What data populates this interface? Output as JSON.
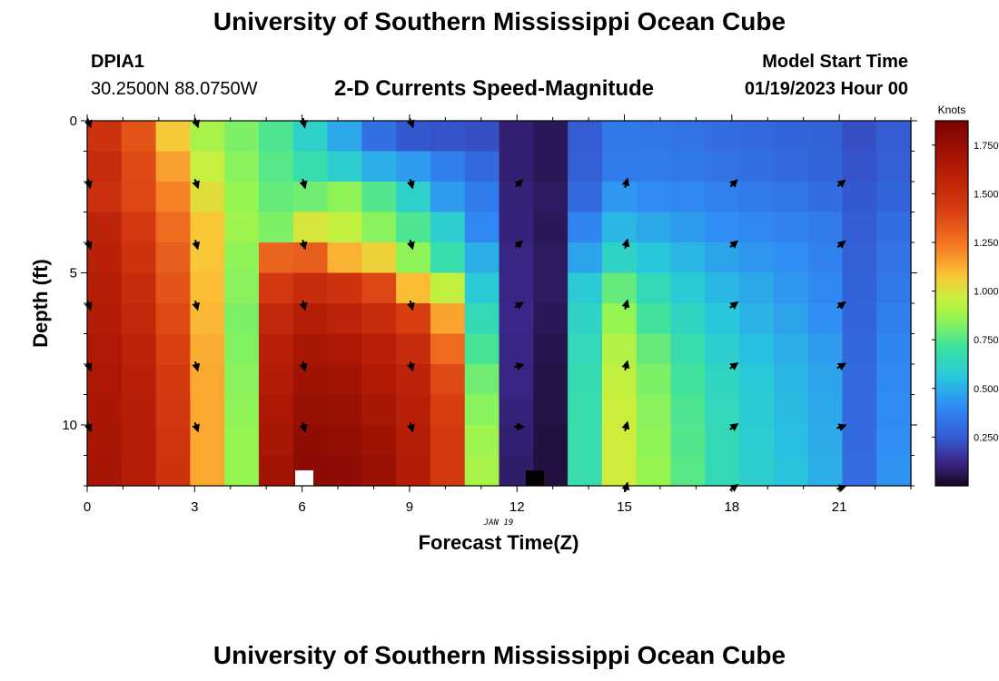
{
  "header": {
    "title": "University of Southern Mississippi Ocean Cube",
    "station": "DPIA1",
    "coordinates": "30.2500N  88.0750W",
    "subtitle": "2-D Currents Speed-Magnitude",
    "model_start_label": "Model Start Time",
    "model_start_value": "01/19/2023 Hour 00"
  },
  "footer": {
    "title": "University of Southern Mississippi Ocean Cube"
  },
  "chart_data": {
    "type": "heatmap",
    "title": "2-D Currents Speed-Magnitude",
    "xlabel": "Forecast Time(Z)",
    "ylabel": "Depth (ft)",
    "x_date_label": "JAN 19",
    "xlim": [
      0,
      23
    ],
    "ylim": [
      0,
      12
    ],
    "x_ticks": [
      0,
      3,
      6,
      9,
      12,
      15,
      18,
      21
    ],
    "y_ticks": [
      0,
      5,
      10
    ],
    "hours": [
      0,
      1,
      2,
      3,
      4,
      5,
      6,
      7,
      8,
      9,
      10,
      11,
      12,
      13,
      14,
      15,
      16,
      17,
      18,
      19,
      20,
      21,
      22,
      23
    ],
    "depths": [
      0,
      1,
      2,
      3,
      4,
      5,
      6,
      7,
      8,
      9,
      10,
      11
    ],
    "colorbar": {
      "label": "Knots",
      "min": 0,
      "max": 1.875,
      "ticks": [
        0.25,
        0.5,
        0.75,
        1.0,
        1.25,
        1.5,
        1.75
      ],
      "tick_labels": [
        "0.250",
        "0.500",
        "0.750",
        "1.000",
        "1.250",
        "1.500",
        "1.750"
      ]
    },
    "speed_knots": [
      [
        1.48,
        1.35,
        1.07,
        0.9,
        0.82,
        0.74,
        0.61,
        0.48,
        0.32,
        0.24,
        0.23,
        0.22,
        0.1,
        0.07,
        0.25,
        0.35,
        0.34,
        0.33,
        0.31,
        0.3,
        0.28,
        0.27,
        0.22,
        0.25
      ],
      [
        1.53,
        1.38,
        1.16,
        0.96,
        0.84,
        0.76,
        0.68,
        0.6,
        0.5,
        0.45,
        0.37,
        0.3,
        0.1,
        0.07,
        0.26,
        0.36,
        0.36,
        0.35,
        0.33,
        0.32,
        0.3,
        0.28,
        0.23,
        0.26
      ],
      [
        1.5,
        1.39,
        1.22,
        1.02,
        0.86,
        0.78,
        0.8,
        0.85,
        0.75,
        0.61,
        0.45,
        0.36,
        0.11,
        0.08,
        0.3,
        0.44,
        0.41,
        0.4,
        0.38,
        0.36,
        0.34,
        0.31,
        0.24,
        0.28
      ],
      [
        1.57,
        1.45,
        1.28,
        1.08,
        0.88,
        0.82,
        1.0,
        0.95,
        0.84,
        0.74,
        0.6,
        0.4,
        0.11,
        0.07,
        0.39,
        0.52,
        0.48,
        0.45,
        0.42,
        0.4,
        0.38,
        0.36,
        0.25,
        0.31
      ],
      [
        1.6,
        1.48,
        1.32,
        1.08,
        0.85,
        1.3,
        1.32,
        1.12,
        1.05,
        0.85,
        0.68,
        0.5,
        0.12,
        0.08,
        0.47,
        0.62,
        0.56,
        0.52,
        0.47,
        0.44,
        0.42,
        0.38,
        0.26,
        0.33
      ],
      [
        1.62,
        1.52,
        1.35,
        1.1,
        0.84,
        1.45,
        1.52,
        1.48,
        1.39,
        1.1,
        0.95,
        0.58,
        0.12,
        0.08,
        0.58,
        0.78,
        0.66,
        0.58,
        0.52,
        0.48,
        0.44,
        0.4,
        0.27,
        0.35
      ],
      [
        1.63,
        1.55,
        1.38,
        1.11,
        0.82,
        1.55,
        1.62,
        1.58,
        1.52,
        1.42,
        1.15,
        0.66,
        0.13,
        0.07,
        0.62,
        0.86,
        0.72,
        0.63,
        0.56,
        0.51,
        0.47,
        0.42,
        0.28,
        0.37
      ],
      [
        1.65,
        1.58,
        1.41,
        1.13,
        0.83,
        1.6,
        1.68,
        1.66,
        1.6,
        1.52,
        1.28,
        0.73,
        0.12,
        0.06,
        0.65,
        0.92,
        0.78,
        0.68,
        0.6,
        0.54,
        0.5,
        0.45,
        0.29,
        0.39
      ],
      [
        1.66,
        1.6,
        1.44,
        1.14,
        0.84,
        1.63,
        1.72,
        1.7,
        1.64,
        1.58,
        1.38,
        0.8,
        0.12,
        0.05,
        0.67,
        0.95,
        0.82,
        0.72,
        0.63,
        0.57,
        0.52,
        0.47,
        0.3,
        0.4
      ],
      [
        1.67,
        1.61,
        1.46,
        1.14,
        0.85,
        1.66,
        1.75,
        1.74,
        1.68,
        1.6,
        1.42,
        0.84,
        0.11,
        0.05,
        0.68,
        0.97,
        0.84,
        0.74,
        0.65,
        0.58,
        0.53,
        0.48,
        0.3,
        0.41
      ],
      [
        1.68,
        1.62,
        1.47,
        1.14,
        0.86,
        1.68,
        1.78,
        1.77,
        1.72,
        1.62,
        1.44,
        0.88,
        0.1,
        0.04,
        0.68,
        0.98,
        0.85,
        0.75,
        0.66,
        0.59,
        0.54,
        0.49,
        0.3,
        0.42
      ],
      [
        1.69,
        1.62,
        1.48,
        1.14,
        0.86,
        1.7,
        1.8,
        1.79,
        1.74,
        1.63,
        1.45,
        0.9,
        0.09,
        0.04,
        0.68,
        0.98,
        0.86,
        0.76,
        0.66,
        0.6,
        0.55,
        0.5,
        0.31,
        0.43
      ]
    ],
    "vectors": {
      "hours": [
        0,
        3,
        6,
        9,
        12,
        15,
        18,
        21
      ],
      "depths": [
        0,
        2,
        4,
        6,
        8,
        10,
        12
      ],
      "direction_deg": [
        [
          160,
          160,
          170,
          160,
          null,
          null,
          null,
          null
        ],
        [
          165,
          160,
          165,
          165,
          45,
          15,
          45,
          50
        ],
        [
          160,
          165,
          165,
          165,
          50,
          15,
          50,
          50
        ],
        [
          160,
          165,
          165,
          165,
          60,
          15,
          55,
          55
        ],
        [
          160,
          165,
          165,
          165,
          75,
          15,
          55,
          60
        ],
        [
          160,
          160,
          165,
          165,
          90,
          15,
          55,
          70
        ],
        [
          null,
          null,
          null,
          null,
          null,
          15,
          55,
          70
        ]
      ]
    }
  }
}
